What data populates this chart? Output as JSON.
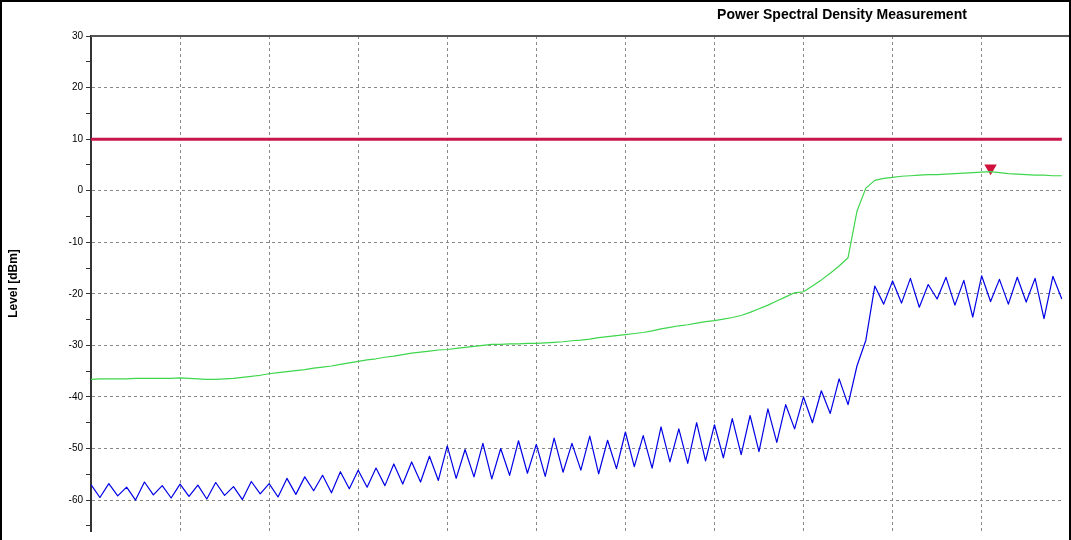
{
  "chart_data": {
    "type": "line",
    "title": "Power Spectral Density Measurement",
    "ylabel": "Level [dBm]",
    "categories": [
      null,
      null,
      null,
      null,
      null,
      null,
      null,
      null,
      null,
      null,
      null,
      null,
      null,
      null,
      null,
      null,
      null,
      null,
      null,
      null,
      null,
      null,
      null,
      null,
      null,
      null,
      null,
      null,
      null,
      null,
      null,
      null,
      null,
      null,
      null,
      null,
      null,
      null,
      null,
      null,
      null,
      null,
      null,
      null,
      null,
      null,
      null,
      null,
      null,
      null,
      null,
      null,
      null,
      null,
      null,
      null,
      null,
      null,
      null,
      null,
      null,
      null,
      null,
      null,
      null,
      null,
      null,
      null,
      null,
      null,
      null,
      null,
      null,
      null,
      null,
      null,
      null,
      null,
      null,
      null,
      null,
      null,
      null,
      null,
      null,
      null,
      null,
      null,
      null,
      null,
      null,
      null,
      null,
      null,
      null,
      null,
      null,
      null,
      null,
      null,
      null,
      null,
      null,
      null,
      null,
      null,
      null,
      null,
      null,
      null
    ],
    "ylim": [
      -66,
      30
    ],
    "yticks": [
      30,
      {
        "value": 25,
        "label": null
      },
      20,
      {
        "value": 15,
        "label": null
      },
      10,
      {
        "value": 5,
        "label": null
      },
      0,
      {
        "value": -5,
        "label": null
      },
      -10,
      {
        "value": -15,
        "label": null
      },
      -20,
      {
        "value": -25,
        "label": null
      },
      -30,
      {
        "value": -35,
        "label": null
      },
      -40,
      {
        "value": -45,
        "label": null
      },
      -50,
      {
        "value": -55,
        "label": null
      },
      -60,
      {
        "value": -65,
        "label": null
      }
    ],
    "grid": true,
    "legend": false,
    "line_style": "solid",
    "marker": "none",
    "series": [
      {
        "color": "#0000e6",
        "values": [
          -57,
          -59.5,
          -56.8,
          -59.2,
          -57.5,
          -60,
          -56.5,
          -59,
          -57.2,
          -59.6,
          -56.9,
          -59.3,
          -57.1,
          -59.8,
          -56.6,
          -59.1,
          -57.4,
          -59.9,
          -56.4,
          -58.8,
          -56.8,
          -59.4,
          -55.8,
          -58.9,
          -55.5,
          -58.2,
          -55.2,
          -58.6,
          -54.5,
          -57.8,
          -54.2,
          -57.5,
          -53.8,
          -57.2,
          -53,
          -56.9,
          -52.6,
          -56.5,
          -51.5,
          -56.2,
          -49.5,
          -55.8,
          -50.2,
          -55.5,
          -49,
          -55.9,
          -50,
          -55.2,
          -48.5,
          -54.8,
          -49.2,
          -55.4,
          -48,
          -54.6,
          -49,
          -54.2,
          -47.6,
          -54.9,
          -48.4,
          -53.9,
          -46.8,
          -53.5,
          -47.5,
          -53.8,
          -45.8,
          -52.6,
          -46.2,
          -52.9,
          -45,
          -52.4,
          -45.4,
          -51.8,
          -44.2,
          -51.2,
          -43.6,
          -50.6,
          -42.3,
          -48.8,
          -41.5,
          -46.2,
          -40,
          -45,
          -38.8,
          -43.2,
          -36.5,
          -41.5,
          -34,
          -29,
          -18.5,
          -22,
          -17.5,
          -21.8,
          -17,
          -22.6,
          -18.2,
          -21,
          -16.8,
          -22.2,
          -17.4,
          -24.5,
          -16.5,
          -21.5,
          -17.2,
          -22,
          -16.8,
          -21.6,
          -17,
          -24.8,
          -16.6,
          -21
        ]
      },
      {
        "color": "#3ed64c",
        "values": [
          -36.6,
          -36.5,
          -36.5,
          -36.5,
          -36.5,
          -36.4,
          -36.4,
          -36.4,
          -36.4,
          -36.4,
          -36.3,
          -36.4,
          -36.5,
          -36.6,
          -36.6,
          -36.5,
          -36.4,
          -36.2,
          -36,
          -35.8,
          -35.5,
          -35.3,
          -35.1,
          -34.9,
          -34.7,
          -34.4,
          -34.2,
          -34,
          -33.7,
          -33.4,
          -33.1,
          -32.8,
          -32.6,
          -32.3,
          -32.1,
          -31.8,
          -31.5,
          -31.3,
          -31.1,
          -30.9,
          -30.8,
          -30.6,
          -30.4,
          -30.2,
          -30,
          -29.8,
          -29.8,
          -29.7,
          -29.7,
          -29.6,
          -29.6,
          -29.5,
          -29.4,
          -29.3,
          -29.1,
          -29,
          -28.8,
          -28.5,
          -28.3,
          -28.1,
          -27.9,
          -27.7,
          -27.5,
          -27.2,
          -26.8,
          -26.5,
          -26.2,
          -26,
          -25.7,
          -25.4,
          -25.2,
          -24.9,
          -24.6,
          -24.2,
          -23.6,
          -22.9,
          -22.2,
          -21.4,
          -20.6,
          -19.8,
          -19.6,
          -18.5,
          -17.3,
          -16,
          -14.6,
          -13,
          -4,
          0.5,
          2,
          2.4,
          2.6,
          2.8,
          2.9,
          3,
          3.1,
          3.1,
          3.2,
          3.3,
          3.4,
          3.5,
          3.6,
          3.7,
          3.5,
          3.3,
          3.2,
          3.1,
          3,
          3,
          2.9,
          2.9
        ]
      },
      {
        "type": "scatter",
        "marker": "triangle",
        "color": "#d0103a",
        "values": [
          null,
          null,
          null,
          null,
          null,
          null,
          null,
          null,
          null,
          null,
          null,
          null,
          null,
          null,
          null,
          null,
          null,
          null,
          null,
          null,
          null,
          null,
          null,
          null,
          null,
          null,
          null,
          null,
          null,
          null,
          null,
          null,
          null,
          null,
          null,
          null,
          null,
          null,
          null,
          null,
          null,
          null,
          null,
          null,
          null,
          null,
          null,
          null,
          null,
          null,
          null,
          null,
          null,
          null,
          null,
          null,
          null,
          null,
          null,
          null,
          null,
          null,
          null,
          null,
          null,
          null,
          null,
          null,
          null,
          null,
          null,
          null,
          null,
          null,
          null,
          null,
          null,
          null,
          null,
          null,
          null,
          null,
          null,
          null,
          null,
          null,
          null,
          null,
          null,
          null,
          null,
          null,
          null,
          null,
          null,
          null,
          null,
          null,
          null,
          null,
          null,
          4.4,
          null,
          null,
          null,
          null,
          null,
          null,
          null,
          null
        ]
      }
    ],
    "ref_lines": [
      {
        "axis": "y",
        "value": 10,
        "color": "#c8164a"
      }
    ]
  }
}
